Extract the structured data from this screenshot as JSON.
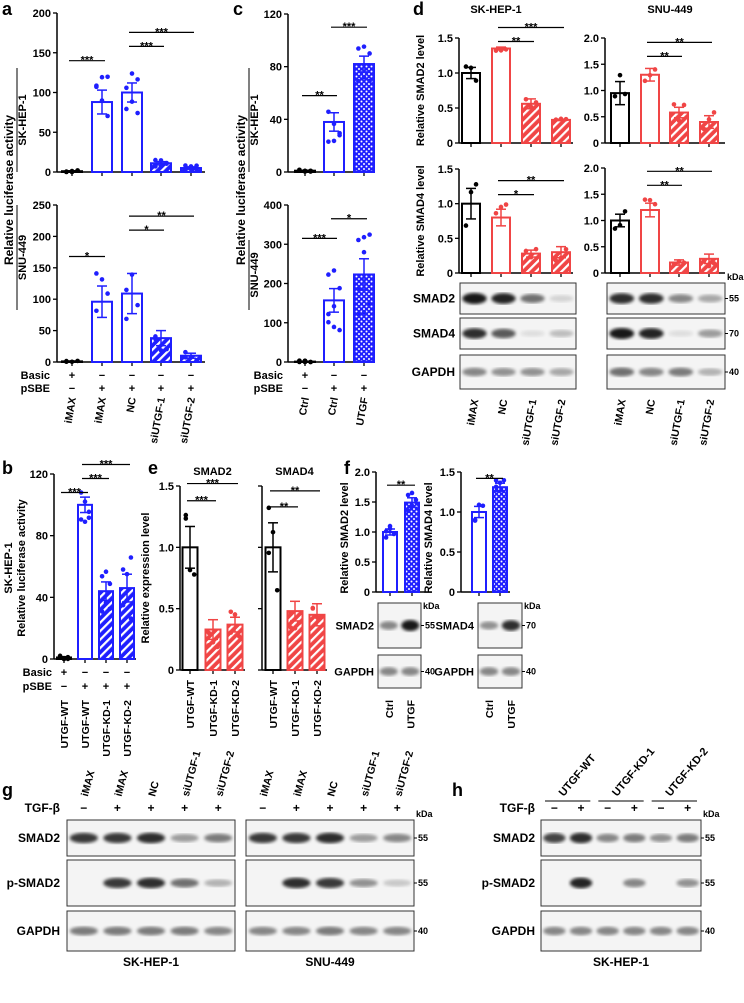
{
  "colors": {
    "blue": "#1f1fff",
    "red": "#f04545",
    "black": "#000000"
  },
  "panel_letters": {
    "a": "a",
    "b": "b",
    "c": "c",
    "d": "d",
    "e": "e",
    "f": "f",
    "g": "g",
    "h": "h"
  },
  "text": {
    "luc_ylabel": "Relative luciferase activity",
    "sk": "SK-HEP-1",
    "snu": "SNU-449",
    "basic": "Basic",
    "psbe": "pSBE",
    "smad2_level": "Relative SMAD2 level",
    "smad4_level": "Relative SMAD4 level",
    "expr_level": "Relative expression level",
    "smad2": "SMAD2",
    "smad4": "SMAD4",
    "kda": "kDa",
    "tgfb": "TGF-β",
    "plus": "+",
    "minus": "−"
  },
  "chart_data": [
    {
      "id": "a-sk",
      "type": "bar",
      "panel": "a",
      "ylabel_sub": "SK-HEP-1",
      "ylim": [
        0,
        200
      ],
      "yticks": [
        0,
        50,
        100,
        150,
        200
      ],
      "categories": [
        "iMAX",
        "iMAX",
        "NC",
        "siUTGF-1",
        "siUTGF-2"
      ],
      "values": [
        1,
        88,
        100,
        11,
        5
      ],
      "errors": [
        0.5,
        15,
        12,
        2,
        1.5
      ],
      "styles": [
        "open-black",
        "open-blue",
        "open-blue",
        "hatch-blue",
        "hatch-blue"
      ],
      "n": 6,
      "sig": [
        {
          "from": 0,
          "to": 1,
          "y": 140,
          "label": "***"
        },
        {
          "from": 2,
          "to": 3,
          "y": 158,
          "label": "***"
        },
        {
          "from": 2,
          "to": 4,
          "y": 172,
          "label": "***"
        }
      ]
    },
    {
      "id": "a-snu",
      "type": "bar",
      "panel": "a",
      "ylabel_sub": "SNU-449",
      "ylim": [
        0,
        250
      ],
      "yticks": [
        0,
        50,
        100,
        150,
        200,
        250
      ],
      "categories": [
        "iMAX",
        "iMAX",
        "NC",
        "siUTGF-1",
        "siUTGF-2"
      ],
      "values": [
        1,
        96,
        109,
        38,
        10
      ],
      "errors": [
        0.5,
        25,
        32,
        12,
        4
      ],
      "styles": [
        "open-black",
        "open-blue",
        "open-blue",
        "hatch-blue",
        "hatch-blue"
      ],
      "n": 4,
      "sig": [
        {
          "from": 0,
          "to": 1,
          "y": 168,
          "label": "*"
        },
        {
          "from": 2,
          "to": 3,
          "y": 210,
          "label": "*"
        },
        {
          "from": 2,
          "to": 4,
          "y": 229,
          "label": "**"
        }
      ]
    },
    {
      "id": "c-sk",
      "type": "bar",
      "panel": "c",
      "ylabel_sub": "SK-HEP-1",
      "ylim": [
        0,
        120
      ],
      "yticks": [
        0,
        40,
        80,
        120
      ],
      "categories": [
        "Ctrl",
        "Ctrl",
        "UTGF"
      ],
      "values": [
        1,
        38,
        82
      ],
      "errors": [
        0.3,
        7,
        6
      ],
      "styles": [
        "open-black",
        "open-blue",
        "check-blue"
      ],
      "n": 6,
      "sig": [
        {
          "from": 0,
          "to": 1,
          "y": 58,
          "label": "**"
        },
        {
          "from": 1,
          "to": 2,
          "y": 110,
          "label": "***"
        }
      ]
    },
    {
      "id": "c-snu",
      "type": "bar",
      "panel": "c",
      "ylabel_sub": "SNU-449",
      "ylim": [
        0,
        400
      ],
      "yticks": [
        0,
        100,
        200,
        300,
        400
      ],
      "categories": [
        "Ctrl",
        "Ctrl",
        "UTGF"
      ],
      "values": [
        1,
        157,
        223
      ],
      "errors": [
        1,
        30,
        40
      ],
      "styles": [
        "open-black",
        "open-blue",
        "check-blue"
      ],
      "n": 8,
      "sig": [
        {
          "from": 0,
          "to": 1,
          "y": 315,
          "label": "***"
        },
        {
          "from": 1,
          "to": 2,
          "y": 365,
          "label": "*"
        }
      ]
    },
    {
      "id": "d-sk-smad2",
      "type": "bar",
      "panel": "d",
      "title": "SK-HEP-1",
      "ylabel": "Relative SMAD2 level",
      "ylim": [
        0,
        1.5
      ],
      "yticks": [
        0,
        0.5,
        1.0,
        1.5
      ],
      "categories": [
        "iMAX",
        "NC",
        "siUTGF-1",
        "siUTGF-2"
      ],
      "values": [
        1.0,
        1.35,
        0.56,
        0.33
      ],
      "errors": [
        0.08,
        0.02,
        0.07,
        0.01
      ],
      "styles": [
        "open-black",
        "open-red",
        "hatch-red",
        "hatch-red"
      ],
      "n": 3,
      "sig": [
        {
          "from": 1,
          "to": 2,
          "y": 1.45,
          "label": "**"
        },
        {
          "from": 1,
          "to": 3,
          "y": 1.6,
          "label": "***"
        }
      ]
    },
    {
      "id": "d-snu-smad2",
      "type": "bar",
      "panel": "d",
      "title": "SNU-449",
      "ylim": [
        0,
        2.0
      ],
      "yticks": [
        0,
        0.5,
        1.0,
        1.5,
        2.0
      ],
      "categories": [
        "iMAX",
        "NC",
        "siUTGF-1",
        "siUTGF-2"
      ],
      "values": [
        0.95,
        1.3,
        0.58,
        0.4
      ],
      "errors": [
        0.22,
        0.12,
        0.1,
        0.12
      ],
      "styles": [
        "open-black",
        "open-red",
        "hatch-red",
        "hatch-red"
      ],
      "n": 3,
      "sig": [
        {
          "from": 1,
          "to": 2,
          "y": 1.65,
          "label": "**"
        },
        {
          "from": 1,
          "to": 3,
          "y": 1.87,
          "label": "**"
        }
      ]
    },
    {
      "id": "d-sk-smad4",
      "type": "bar",
      "panel": "d",
      "ylabel": "Relative SMAD4 level",
      "ylim": [
        0,
        1.5
      ],
      "yticks": [
        0,
        0.5,
        1.0,
        1.5
      ],
      "categories": [
        "iMAX",
        "NC",
        "siUTGF-1",
        "siUTGF-2"
      ],
      "values": [
        1.0,
        0.8,
        0.28,
        0.3
      ],
      "errors": [
        0.22,
        0.12,
        0.05,
        0.08
      ],
      "styles": [
        "open-black",
        "open-red",
        "hatch-red",
        "hatch-red"
      ],
      "n": 3,
      "sig": [
        {
          "from": 1,
          "to": 2,
          "y": 1.13,
          "label": "*"
        },
        {
          "from": 1,
          "to": 3,
          "y": 1.29,
          "label": "**"
        }
      ]
    },
    {
      "id": "d-snu-smad4",
      "type": "bar",
      "panel": "d",
      "ylim": [
        0,
        2.0
      ],
      "yticks": [
        0,
        0.5,
        1.0,
        1.5,
        2.0
      ],
      "categories": [
        "iMAX",
        "NC",
        "siUTGF-1",
        "siUTGF-2"
      ],
      "values": [
        1.0,
        1.2,
        0.2,
        0.27
      ],
      "errors": [
        0.12,
        0.13,
        0.05,
        0.09
      ],
      "styles": [
        "open-black",
        "open-red",
        "hatch-red",
        "hatch-red"
      ],
      "n": 3,
      "sig": [
        {
          "from": 1,
          "to": 2,
          "y": 1.67,
          "label": "**"
        },
        {
          "from": 1,
          "to": 3,
          "y": 1.9,
          "label": "**"
        }
      ]
    },
    {
      "id": "b",
      "type": "bar",
      "panel": "b",
      "ylabel": "Relative luciferase activity",
      "ylabel_sub": "SK-HEP-1",
      "ylim": [
        0,
        120
      ],
      "yticks": [
        0,
        40,
        80,
        120
      ],
      "categories": [
        "UTGF-WT",
        "UTGF-WT",
        "UTGF-KD-1",
        "UTGF-KD-2"
      ],
      "values": [
        1,
        100,
        44,
        46
      ],
      "errors": [
        0.5,
        5,
        6,
        9
      ],
      "styles": [
        "open-black",
        "open-blue",
        "hatch-blue",
        "hatch-blue"
      ],
      "n": 6,
      "sig": [
        {
          "from": 0,
          "to": 1,
          "y": 108,
          "label": "***"
        },
        {
          "from": 1,
          "to": 2,
          "y": 108,
          "label": "***"
        },
        {
          "from": 1,
          "to": 3,
          "y": 116,
          "label": "***"
        }
      ]
    },
    {
      "id": "e-smad2",
      "type": "bar",
      "panel": "e",
      "title": "SMAD2",
      "ylabel": "Relative expression level",
      "ylim": [
        0,
        1.5
      ],
      "yticks": [
        0,
        0.5,
        1.0,
        1.5
      ],
      "categories": [
        "UTGF-WT",
        "UTGF-KD-1",
        "UTGF-KD-2"
      ],
      "values": [
        1.0,
        0.33,
        0.37
      ],
      "errors": [
        0.17,
        0.08,
        0.06
      ],
      "styles": [
        "open-black",
        "hatch-red",
        "hatch-red"
      ],
      "n": 4,
      "sig": [
        {
          "from": 0,
          "to": 1,
          "y": 1.38,
          "label": "***"
        },
        {
          "from": 0,
          "to": 2,
          "y": 1.52,
          "label": "***"
        }
      ]
    },
    {
      "id": "e-smad4",
      "type": "bar",
      "panel": "e",
      "title": "SMAD4",
      "ylim": [
        0,
        1.5
      ],
      "yticks": [
        0,
        0.5,
        1.0,
        1.5
      ],
      "hide_tick_labels": true,
      "categories": [
        "UTGF-WT",
        "UTGF-KD-1",
        "UTGF-KD-2"
      ],
      "values": [
        1.0,
        0.48,
        0.45
      ],
      "errors": [
        0.2,
        0.08,
        0.09
      ],
      "styles": [
        "open-black",
        "hatch-red",
        "hatch-red"
      ],
      "n": 4,
      "sig": [
        {
          "from": 0,
          "to": 1,
          "y": 1.33,
          "label": "**"
        },
        {
          "from": 0,
          "to": 2,
          "y": 1.46,
          "label": "**"
        }
      ]
    },
    {
      "id": "f-smad2",
      "type": "bar",
      "panel": "f",
      "ylabel": "Relative SMAD2 level",
      "ylim": [
        0,
        2.0
      ],
      "yticks": [
        0,
        0.5,
        1.0,
        1.5,
        2.0
      ],
      "categories": [
        "Ctrl",
        "UTGF"
      ],
      "values": [
        1.0,
        1.49
      ],
      "errors": [
        0.05,
        0.08
      ],
      "styles": [
        "open-blue",
        "check-blue"
      ],
      "n": 5,
      "sig": [
        {
          "from": 0,
          "to": 1,
          "y": 1.78,
          "label": "**"
        }
      ]
    },
    {
      "id": "f-smad4",
      "type": "bar",
      "panel": "f",
      "ylabel": "Relative SMAD4 level",
      "ylim": [
        0,
        1.5
      ],
      "yticks": [
        0,
        0.5,
        1.0,
        1.5
      ],
      "categories": [
        "Ctrl",
        "UTGF"
      ],
      "values": [
        1.0,
        1.31
      ],
      "errors": [
        0.07,
        0.05
      ],
      "styles": [
        "open-blue",
        "check-blue"
      ],
      "n": 4,
      "sig": [
        {
          "from": 0,
          "to": 1,
          "y": 1.42,
          "label": "**"
        }
      ]
    }
  ],
  "treatment_rows": {
    "a": {
      "basic": [
        "+",
        "−",
        "−",
        "−",
        "−"
      ],
      "psbe": [
        "−",
        "+",
        "+",
        "+",
        "+"
      ]
    },
    "c": {
      "basic": [
        "+",
        "−",
        "−"
      ],
      "psbe": [
        "−",
        "+",
        "+"
      ]
    },
    "b": {
      "basic": [
        "+",
        "−",
        "−",
        "−"
      ],
      "psbe": [
        "−",
        "+",
        "+",
        "+"
      ]
    },
    "g": {
      "tgfb": [
        "−",
        "+",
        "+",
        "+",
        "+"
      ]
    },
    "h": {
      "tgfb": [
        "−",
        "+",
        "−",
        "+",
        "−",
        "+"
      ]
    }
  },
  "blots": [
    {
      "id": "d-sk",
      "lanes": [
        "iMAX",
        "NC",
        "siUTGF-1",
        "siUTGF-2"
      ],
      "rows": [
        {
          "label": "SMAD2",
          "kda": "",
          "bands": [
            1,
            0.95,
            0.6,
            0.15
          ]
        },
        {
          "label": "SMAD4",
          "kda": "",
          "bands": [
            0.9,
            0.7,
            0.1,
            0.25
          ]
        },
        {
          "label": "GAPDH",
          "kda": "",
          "bands": [
            0.5,
            0.45,
            0.45,
            0.35
          ]
        }
      ]
    },
    {
      "id": "d-snu",
      "lanes": [
        "iMAX",
        "NC",
        "siUTGF-1",
        "siUTGF-2"
      ],
      "rows": [
        {
          "label": "",
          "kda": "55",
          "bands": [
            0.9,
            0.9,
            0.5,
            0.35
          ]
        },
        {
          "label": "",
          "kda": "70",
          "bands": [
            1,
            0.95,
            0.1,
            0.4
          ]
        },
        {
          "label": "",
          "kda": "40",
          "bands": [
            0.6,
            0.5,
            0.55,
            0.3
          ]
        }
      ]
    },
    {
      "id": "f-smad2",
      "lanes": [
        "Ctrl",
        "UTGF"
      ],
      "rows": [
        {
          "label": "SMAD2",
          "kda": "55",
          "bands": [
            0.5,
            1
          ]
        },
        {
          "label": "GAPDH",
          "kda": "40",
          "bands": [
            0.5,
            0.5
          ]
        }
      ]
    },
    {
      "id": "f-smad4",
      "lanes": [
        "Ctrl",
        "UTGF"
      ],
      "rows": [
        {
          "label": "SMAD4",
          "kda": "70",
          "bands": [
            0.45,
            0.9
          ]
        },
        {
          "label": "GAPDH",
          "kda": "40",
          "bands": [
            0.5,
            0.5
          ]
        }
      ]
    },
    {
      "id": "g-sk",
      "caption": "SK-HEP-1",
      "lanes": [
        "iMAX",
        "iMAX",
        "NC",
        "siUTGF-1",
        "siUTGF-2"
      ],
      "rows": [
        {
          "label": "SMAD2",
          "kda": "",
          "bands": [
            0.85,
            0.85,
            0.9,
            0.4,
            0.55
          ]
        },
        {
          "label": "p-SMAD2",
          "kda": "",
          "bands": [
            0,
            0.85,
            0.9,
            0.6,
            0.3
          ]
        },
        {
          "label": "GAPDH",
          "kda": "",
          "bands": [
            0.55,
            0.55,
            0.55,
            0.55,
            0.5
          ]
        }
      ]
    },
    {
      "id": "g-snu",
      "caption": "SNU-449",
      "lanes": [
        "iMAX",
        "iMAX",
        "NC",
        "siUTGF-1",
        "siUTGF-2"
      ],
      "rows": [
        {
          "label": "",
          "kda": "55",
          "bands": [
            0.85,
            0.85,
            0.9,
            0.4,
            0.5
          ]
        },
        {
          "label": "",
          "kda": "55",
          "bands": [
            0,
            0.9,
            0.85,
            0.45,
            0.2
          ]
        },
        {
          "label": "",
          "kda": "40",
          "bands": [
            0.5,
            0.5,
            0.55,
            0.5,
            0.5
          ]
        }
      ]
    },
    {
      "id": "h",
      "caption": "SK-HEP-1",
      "groups": [
        "UTGF-WT",
        "UTGF-KD-1",
        "UTGF-KD-2"
      ],
      "lanes": [
        "",
        "",
        "",
        "",
        "",
        ""
      ],
      "rows": [
        {
          "label": "SMAD2",
          "kda": "55",
          "bands": [
            0.8,
            0.9,
            0.5,
            0.55,
            0.45,
            0.55
          ]
        },
        {
          "label": "p-SMAD2",
          "kda": "55",
          "bands": [
            0,
            0.95,
            0,
            0.5,
            0,
            0.45
          ]
        },
        {
          "label": "GAPDH",
          "kda": "40",
          "bands": [
            0.5,
            0.5,
            0.5,
            0.5,
            0.5,
            0.5
          ]
        }
      ]
    }
  ]
}
